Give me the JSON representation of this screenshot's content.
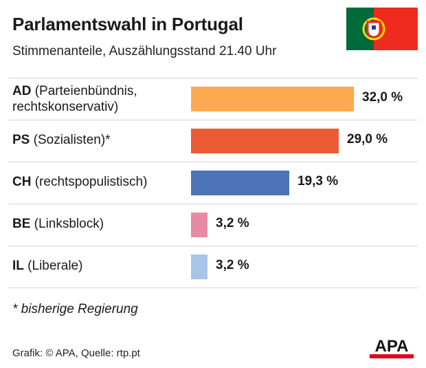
{
  "header": {
    "title": "Parlamentswahl in Portugal",
    "subtitle": "Stimmenanteile, Auszählungsstand 21.40 Uhr"
  },
  "flag": {
    "icon": "portugal-flag-icon",
    "colors": {
      "green": "#006a3b",
      "red": "#ef2b1f",
      "yellow": "#ffdf00"
    }
  },
  "chart_data": {
    "type": "bar",
    "orientation": "horizontal",
    "categories": [
      "AD",
      "PS",
      "CH",
      "BE",
      "IL"
    ],
    "descriptions": [
      "(Parteienbündnis, rechtskonservativ)",
      "(Sozialisten)*",
      "(rechtspopulistisch)",
      "(Linksblock)",
      "(Liberale)"
    ],
    "values": [
      32.0,
      29.0,
      19.3,
      3.2,
      3.2
    ],
    "value_labels": [
      "32,0 %",
      "29,0 %",
      "19,3 %",
      "3,2 %",
      "3,2 %"
    ],
    "colors": [
      "#fca94f",
      "#eb5c35",
      "#4d74b8",
      "#e88aa4",
      "#a8c4e6"
    ],
    "unit": "%",
    "xlim": [
      0,
      32.0
    ],
    "grid": false,
    "legend": "none"
  },
  "footnote": "* bisherige Regierung",
  "source": "Grafik: © APA, Quelle: rtp.pt",
  "logo": {
    "text": "APA",
    "icon": "apa-logo-icon",
    "color": "#e3001b"
  }
}
